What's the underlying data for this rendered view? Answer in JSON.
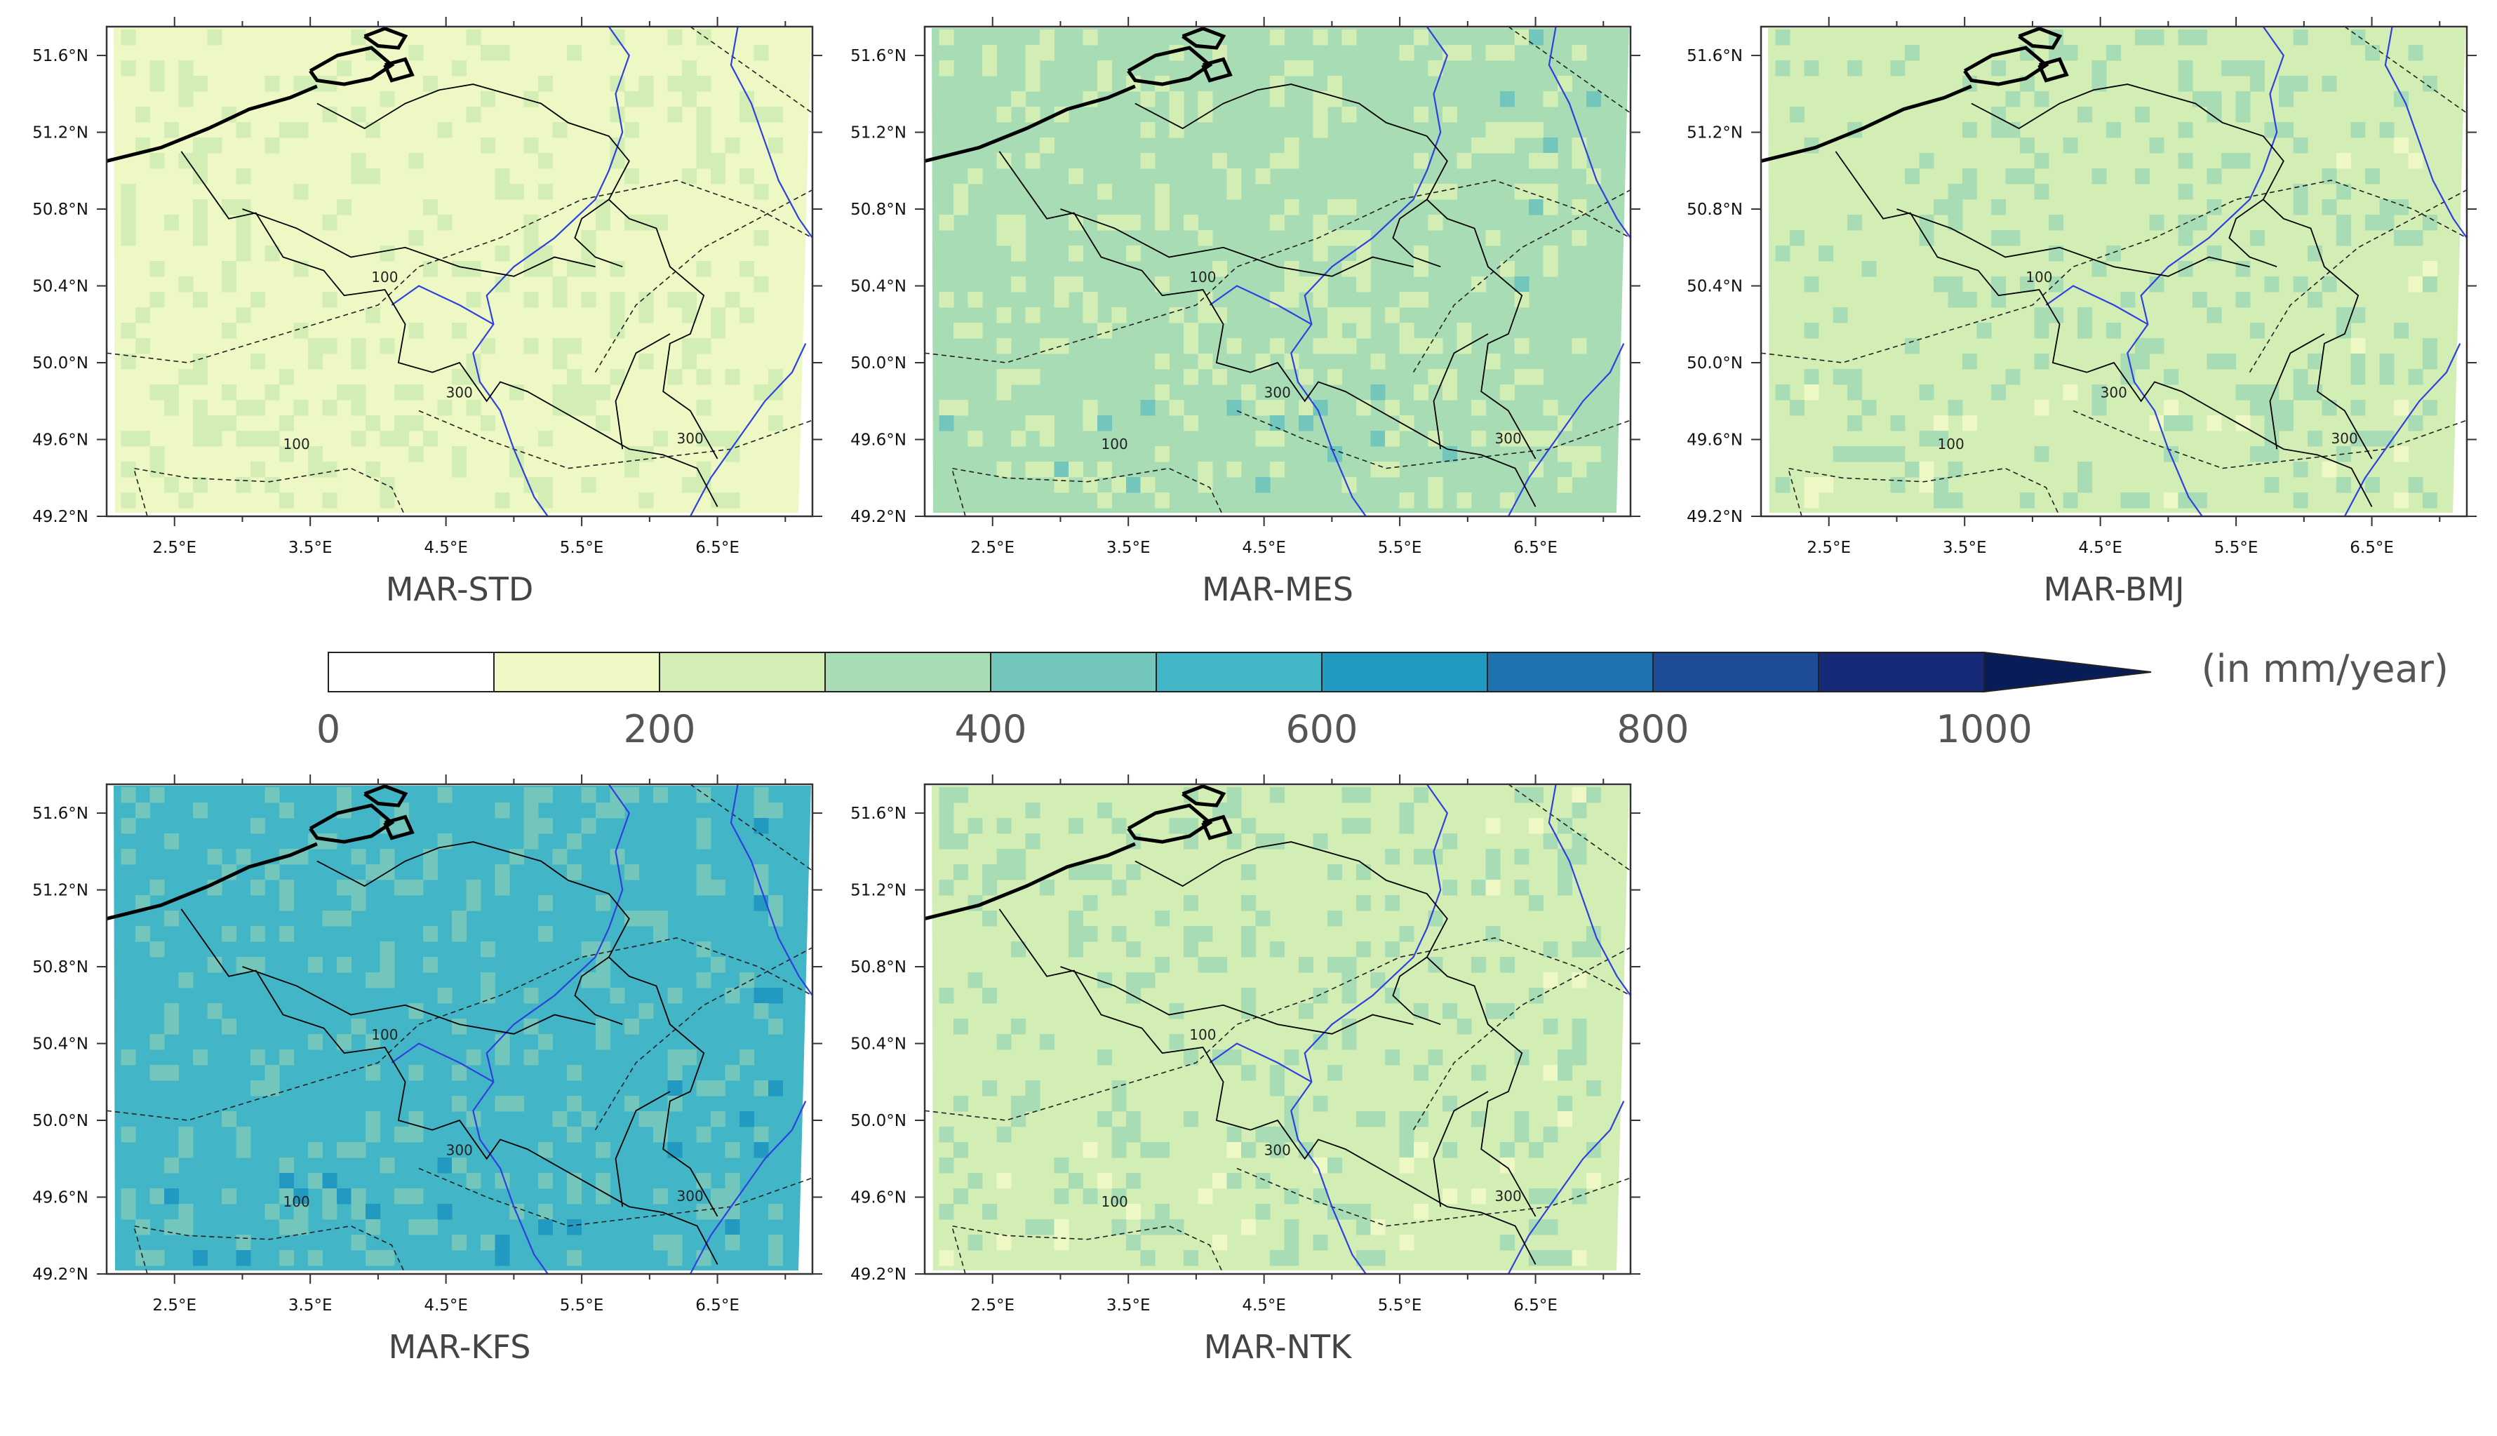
{
  "figure": {
    "x_ticks": [
      "2.5°E",
      "3.5°E",
      "4.5°E",
      "5.5°E",
      "6.5°E"
    ],
    "y_ticks": [
      "51.6°N",
      "51.2°N",
      "50.8°N",
      "50.4°N",
      "50.0°N",
      "49.6°N",
      "49.2°N"
    ],
    "contour_labels": [
      "100",
      "100",
      "300",
      "300"
    ],
    "panels": [
      {
        "title": "MAR-STD",
        "base_class": 1,
        "patch_class": 2,
        "dark_class": 2
      },
      {
        "title": "MAR-MES",
        "base_class": 3,
        "patch_class": 2,
        "dark_class": 4
      },
      {
        "title": "MAR-BMJ",
        "base_class": 2,
        "patch_class": 3,
        "dark_class": 1
      },
      {
        "title": "MAR-KFS",
        "base_class": 5,
        "patch_class": 4,
        "dark_class": 6
      },
      {
        "title": "MAR-NTK",
        "base_class": 2,
        "patch_class": 3,
        "dark_class": 1
      }
    ]
  },
  "colorbar": {
    "unit_label": "(in mm/year)",
    "tick_labels": [
      "0",
      "200",
      "400",
      "600",
      "800",
      "1000"
    ],
    "classes": [
      {
        "range": [
          0,
          100
        ],
        "color": "#ffffff"
      },
      {
        "range": [
          100,
          200
        ],
        "color": "#edf8c4"
      },
      {
        "range": [
          200,
          300
        ],
        "color": "#d3eeb4"
      },
      {
        "range": [
          300,
          400
        ],
        "color": "#a8dcb5"
      },
      {
        "range": [
          400,
          500
        ],
        "color": "#73c6bc"
      },
      {
        "range": [
          500,
          600
        ],
        "color": "#42b5c6"
      },
      {
        "range": [
          600,
          700
        ],
        "color": "#2199c1"
      },
      {
        "range": [
          700,
          800
        ],
        "color": "#1f72b0"
      },
      {
        "range": [
          800,
          900
        ],
        "color": "#1d4b96"
      },
      {
        "range": [
          900,
          1000
        ],
        "color": "#172a78"
      }
    ],
    "overflow_color": "#081d58"
  },
  "colors": {
    "border": "#000000",
    "river": "#2f3fe0",
    "coast": "#000000"
  }
}
